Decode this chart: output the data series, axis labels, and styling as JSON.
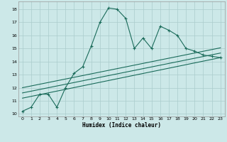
{
  "xlabel": "Humidex (Indice chaleur)",
  "ylabel": "",
  "bg_color": "#cce8e8",
  "grid_color": "#aacccc",
  "line_color": "#1a6b5a",
  "xlim": [
    -0.5,
    23.5
  ],
  "ylim": [
    9.8,
    18.6
  ],
  "xticks": [
    0,
    1,
    2,
    3,
    4,
    5,
    6,
    7,
    8,
    9,
    10,
    11,
    12,
    13,
    14,
    15,
    16,
    17,
    18,
    19,
    20,
    21,
    22,
    23
  ],
  "yticks": [
    10,
    11,
    12,
    13,
    14,
    15,
    16,
    17,
    18
  ],
  "main_x": [
    0,
    1,
    2,
    3,
    4,
    5,
    6,
    7,
    8,
    9,
    10,
    11,
    12,
    13,
    14,
    15,
    16,
    17,
    18,
    19,
    20,
    21,
    22,
    23
  ],
  "main_y": [
    10.2,
    10.5,
    11.5,
    11.5,
    10.5,
    12.0,
    13.1,
    13.6,
    15.2,
    17.0,
    18.1,
    18.0,
    17.3,
    15.0,
    15.8,
    15.0,
    16.7,
    16.4,
    16.0,
    15.0,
    14.8,
    14.5,
    14.4,
    14.3
  ],
  "line2_x": [
    0,
    23
  ],
  "line2_y": [
    11.2,
    14.3
  ],
  "line3_x": [
    0,
    23
  ],
  "line3_y": [
    11.6,
    14.65
  ],
  "line4_x": [
    0,
    23
  ],
  "line4_y": [
    12.0,
    15.05
  ]
}
